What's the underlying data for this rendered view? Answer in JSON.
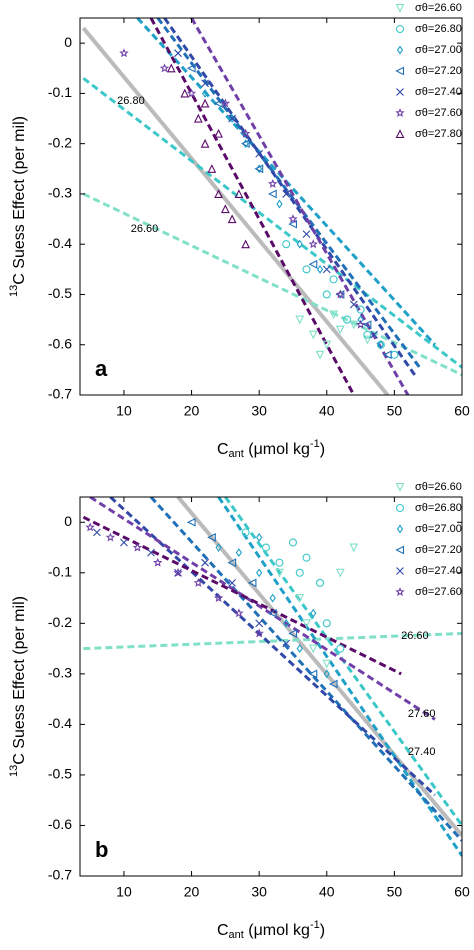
{
  "chart_data": [
    {
      "type": "scatter",
      "panel_label": "a",
      "y_label_sup": "13",
      "y_label": "C Suess Effect (per mil)",
      "x_label": "C",
      "x_label_sub": "ant",
      "x_label_rest": " (μmol kg",
      "x_label_sup": "-1",
      "x_label_end": ")",
      "xlim": [
        3.5,
        60
      ],
      "ylim": [
        -0.7,
        0.05
      ],
      "xticks": [
        10,
        20,
        30,
        40,
        50,
        60
      ],
      "yticks": [
        -0.7,
        -0.6,
        -0.5,
        -0.4,
        -0.3,
        -0.2,
        -0.1,
        0
      ],
      "legend": "upper right",
      "series": [
        {
          "name": "σθ=26.60",
          "color": "#80e0c8",
          "marker": "v",
          "x": [
            36,
            38,
            40,
            42,
            44,
            46,
            39,
            41
          ],
          "values": [
            -0.55,
            -0.58,
            -0.6,
            -0.57,
            -0.56,
            -0.59,
            -0.62,
            -0.54
          ]
        },
        {
          "name": "σθ=26.80",
          "color": "#3cc8c8",
          "marker": "o",
          "x": [
            34,
            37,
            40,
            43,
            46,
            48,
            50,
            41,
            45
          ],
          "values": [
            -0.4,
            -0.45,
            -0.5,
            -0.55,
            -0.58,
            -0.6,
            -0.62,
            -0.47,
            -0.53
          ]
        },
        {
          "name": "σθ=27.00",
          "color": "#1ea0c8",
          "marker": "d",
          "x": [
            22,
            26,
            30,
            33,
            36,
            39,
            42,
            45,
            48,
            28
          ],
          "values": [
            -0.1,
            -0.15,
            -0.25,
            -0.32,
            -0.4,
            -0.45,
            -0.5,
            -0.55,
            -0.6,
            -0.2
          ]
        },
        {
          "name": "σθ=27.20",
          "color": "#2070b8",
          "marker": "<",
          "x": [
            20,
            24,
            28,
            32,
            35,
            38,
            42,
            46,
            49,
            30
          ],
          "values": [
            -0.05,
            -0.12,
            -0.2,
            -0.3,
            -0.36,
            -0.44,
            -0.5,
            -0.56,
            -0.62,
            -0.25
          ]
        },
        {
          "name": "σθ=27.40",
          "color": "#3048a8",
          "marker": "x",
          "x": [
            18,
            22,
            26,
            30,
            34,
            37,
            40,
            44,
            47
          ],
          "values": [
            -0.02,
            -0.08,
            -0.15,
            -0.22,
            -0.3,
            -0.38,
            -0.45,
            -0.52,
            -0.58
          ]
        },
        {
          "name": "σθ=27.60",
          "color": "#7040a8",
          "marker": "*",
          "x": [
            10,
            16,
            20,
            25,
            28,
            32,
            35,
            38,
            42,
            45
          ],
          "values": [
            -0.02,
            -0.05,
            -0.1,
            -0.12,
            -0.18,
            -0.28,
            -0.35,
            -0.4,
            -0.5,
            -0.56
          ]
        },
        {
          "name": "σθ=27.80",
          "color": "#5a0a68",
          "marker": "^",
          "x": [
            17,
            19,
            21,
            22,
            23,
            24,
            25,
            26,
            27,
            28,
            22,
            24
          ],
          "values": [
            -0.05,
            -0.1,
            -0.15,
            -0.2,
            -0.25,
            -0.3,
            -0.33,
            -0.35,
            -0.3,
            -0.4,
            -0.12,
            -0.18
          ]
        }
      ],
      "lines": [
        {
          "color": "#bbbbbb",
          "width": 4,
          "x": [
            4,
            49
          ],
          "y": [
            0.03,
            -0.7
          ]
        },
        {
          "color": "#80e0c8",
          "x": [
            4,
            60
          ],
          "y": [
            -0.3,
            -0.66
          ]
        },
        {
          "color": "#3cc8c8",
          "x": [
            4,
            60
          ],
          "y": [
            -0.07,
            -0.645
          ]
        },
        {
          "color": "#1ea0c8",
          "x": [
            12,
            56
          ],
          "y": [
            0.05,
            -0.6
          ]
        },
        {
          "color": "#2070b8",
          "x": [
            15,
            54
          ],
          "y": [
            0.05,
            -0.65
          ]
        },
        {
          "color": "#3048a8",
          "x": [
            16,
            53
          ],
          "y": [
            0.05,
            -0.66
          ]
        },
        {
          "color": "#7040a8",
          "x": [
            20,
            52
          ],
          "y": [
            0.05,
            -0.7
          ]
        },
        {
          "color": "#5a0a68",
          "x": [
            14,
            44
          ],
          "y": [
            0.05,
            -0.7
          ]
        }
      ],
      "annotations": [
        {
          "text": "26.80",
          "x": 9,
          "y": -0.115
        },
        {
          "text": "26.60",
          "x": 11,
          "y": -0.37
        }
      ]
    },
    {
      "type": "scatter",
      "panel_label": "b",
      "y_label_sup": "13",
      "y_label": "C Suess Effect (per mil)",
      "x_label": "C",
      "x_label_sub": "ant",
      "x_label_rest": " (μmol kg",
      "x_label_sup": "-1",
      "x_label_end": ")",
      "xlim": [
        3.5,
        60
      ],
      "ylim": [
        -0.7,
        0.05
      ],
      "xticks": [
        10,
        20,
        30,
        40,
        50,
        60
      ],
      "yticks": [
        -0.7,
        -0.6,
        -0.5,
        -0.4,
        -0.3,
        -0.2,
        -0.1,
        0
      ],
      "legend": "upper right",
      "series": [
        {
          "name": "σθ=26.60",
          "color": "#80e0c8",
          "marker": "v",
          "x": [
            33,
            36,
            38,
            40,
            42,
            44,
            37
          ],
          "values": [
            -0.1,
            -0.15,
            -0.25,
            -0.28,
            -0.1,
            -0.05,
            -0.2
          ]
        },
        {
          "name": "σθ=26.80",
          "color": "#3cc8c8",
          "marker": "o",
          "x": [
            28,
            31,
            33,
            35,
            37,
            39,
            36,
            40,
            42
          ],
          "values": [
            -0.02,
            -0.05,
            -0.08,
            -0.04,
            -0.07,
            -0.12,
            -0.1,
            -0.2,
            -0.25
          ]
        },
        {
          "name": "σθ=27.00",
          "color": "#1ea0c8",
          "marker": "d",
          "x": [
            24,
            27,
            30,
            32,
            34,
            36,
            38,
            40,
            30
          ],
          "values": [
            -0.05,
            -0.06,
            -0.1,
            -0.15,
            -0.2,
            -0.25,
            -0.18,
            -0.3,
            -0.03
          ]
        },
        {
          "name": "σθ=27.20",
          "color": "#2070b8",
          "marker": "<",
          "x": [
            20,
            23,
            26,
            29,
            32,
            35,
            38,
            41
          ],
          "values": [
            0,
            -0.03,
            -0.08,
            -0.12,
            -0.18,
            -0.22,
            -0.3,
            -0.32
          ]
        },
        {
          "name": "σθ=27.40",
          "color": "#3048a8",
          "marker": "x",
          "x": [
            6,
            10,
            14,
            18,
            22,
            26,
            30,
            34
          ],
          "values": [
            -0.02,
            -0.04,
            -0.06,
            -0.1,
            -0.08,
            -0.12,
            -0.2,
            -0.24
          ]
        },
        {
          "name": "σθ=27.60",
          "color": "#7040a8",
          "marker": "*",
          "x": [
            5,
            8,
            12,
            15,
            18,
            21,
            24,
            27,
            30
          ],
          "values": [
            -0.01,
            -0.03,
            -0.05,
            -0.08,
            -0.1,
            -0.12,
            -0.15,
            -0.18,
            -0.22
          ]
        }
      ],
      "lines": [
        {
          "color": "#bbbbbb",
          "width": 4,
          "x": [
            18,
            60
          ],
          "y": [
            0.05,
            -0.62
          ]
        },
        {
          "color": "#80e0c8",
          "x": [
            4,
            60
          ],
          "y": [
            -0.25,
            -0.22
          ]
        },
        {
          "color": "#3cc8c8",
          "x": [
            25,
            60
          ],
          "y": [
            0.05,
            -0.6
          ]
        },
        {
          "color": "#1ea0c8",
          "x": [
            24,
            60
          ],
          "y": [
            0.05,
            -0.66
          ]
        },
        {
          "color": "#2070b8",
          "x": [
            14,
            60
          ],
          "y": [
            0.05,
            -0.63
          ]
        },
        {
          "color": "#3048a8",
          "x": [
            8,
            56
          ],
          "y": [
            0.05,
            -0.54
          ]
        },
        {
          "color": "#7040a8",
          "x": [
            5,
            56
          ],
          "y": [
            0.05,
            -0.39
          ]
        },
        {
          "color": "#5a0a68",
          "x": [
            4,
            51
          ],
          "y": [
            0.01,
            -0.3
          ]
        }
      ],
      "annotations": [
        {
          "text": "26.60",
          "x": 51,
          "y": -0.225
        },
        {
          "text": "27.60",
          "x": 52,
          "y": -0.38
        },
        {
          "text": "27.40",
          "x": 52,
          "y": -0.455
        }
      ]
    }
  ]
}
